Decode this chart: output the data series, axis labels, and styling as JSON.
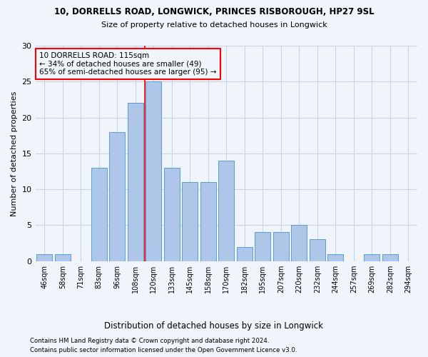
{
  "title_line1": "10, DORRELLS ROAD, LONGWICK, PRINCES RISBOROUGH, HP27 9SL",
  "title_line2": "Size of property relative to detached houses in Longwick",
  "xlabel": "Distribution of detached houses by size in Longwick",
  "ylabel": "Number of detached properties",
  "bins": [
    "46sqm",
    "58sqm",
    "71sqm",
    "83sqm",
    "96sqm",
    "108sqm",
    "120sqm",
    "133sqm",
    "145sqm",
    "158sqm",
    "170sqm",
    "182sqm",
    "195sqm",
    "207sqm",
    "220sqm",
    "232sqm",
    "244sqm",
    "257sqm",
    "269sqm",
    "282sqm",
    "294sqm"
  ],
  "values": [
    1,
    1,
    0,
    13,
    18,
    22,
    25,
    13,
    11,
    11,
    14,
    2,
    4,
    4,
    5,
    3,
    1,
    0,
    1,
    1,
    0
  ],
  "bar_color": "#aec6e8",
  "bar_edge_color": "#5b9bd5",
  "vline_color": "red",
  "annotation_text": "10 DORRELLS ROAD: 115sqm\n← 34% of detached houses are smaller (49)\n65% of semi-detached houses are larger (95) →",
  "annotation_box_edge": "red",
  "ylim": [
    0,
    30
  ],
  "yticks": [
    0,
    5,
    10,
    15,
    20,
    25,
    30
  ],
  "footer_line1": "Contains HM Land Registry data © Crown copyright and database right 2024.",
  "footer_line2": "Contains public sector information licensed under the Open Government Licence v3.0.",
  "background_color": "#f0f4fb",
  "grid_color": "#c8d4e8"
}
